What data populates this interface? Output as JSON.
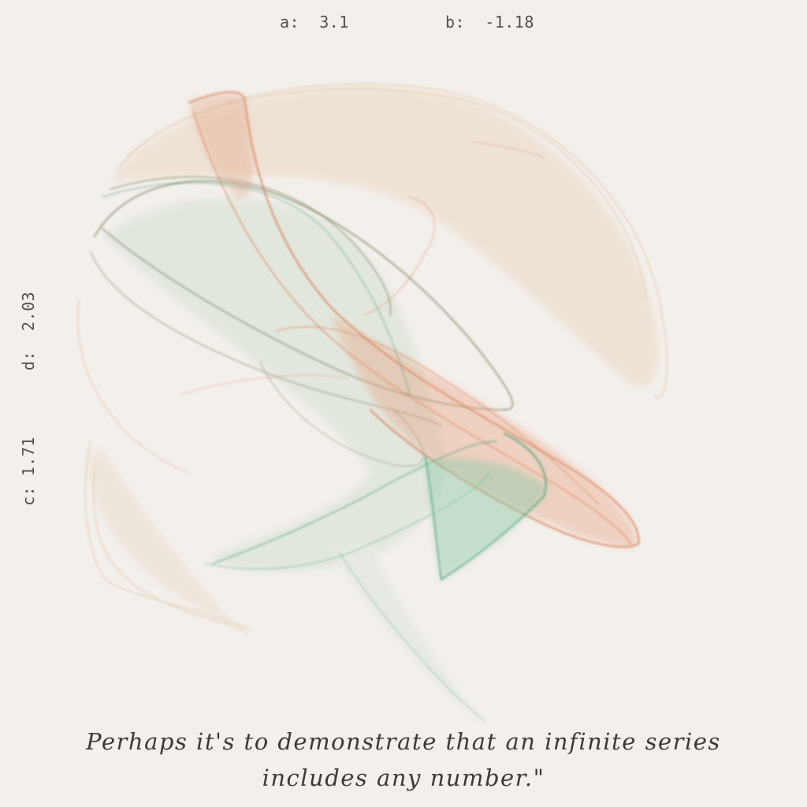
{
  "params": {
    "a": {
      "label": "a:",
      "value": "3.1"
    },
    "b": {
      "label": "b:",
      "value": "-1.18"
    },
    "c": {
      "label": "c:",
      "value": "1.71"
    },
    "d": {
      "label": "d:",
      "value": "2.03"
    }
  },
  "quote": {
    "line1": "Perhaps it's to demonstrate that an infinite series",
    "line2": "includes any number.\""
  },
  "colors": {
    "background": "#f3efeb",
    "text": "#3d3935",
    "orange": "#d8693a",
    "green": "#3aa070",
    "olive": "#6b7a4a",
    "tan": "#d9b48a"
  }
}
